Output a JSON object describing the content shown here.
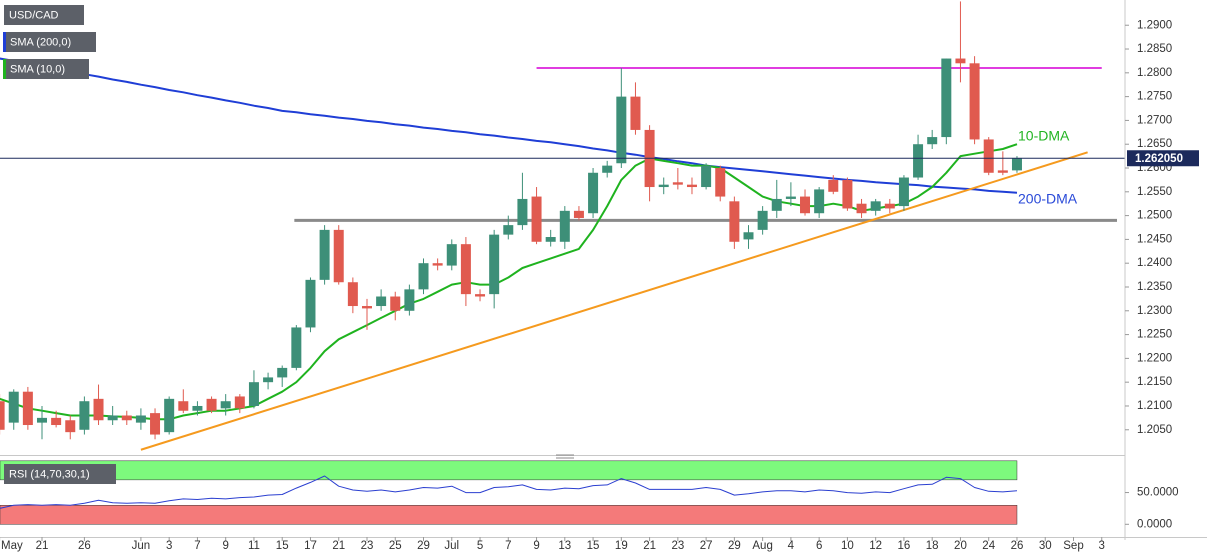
{
  "chart_data": {
    "type": "candlestick",
    "title": "USD/CAD",
    "up_color": "#3d8f78",
    "down_color": "#e05a4f",
    "categories": [
      "May",
      null,
      null,
      "21",
      null,
      null,
      "26",
      null,
      null,
      null,
      "Jun",
      null,
      "3",
      null,
      "7",
      null,
      "9",
      null,
      "11",
      null,
      "15",
      null,
      "17",
      null,
      "21",
      null,
      "23",
      null,
      "25",
      null,
      "29",
      null,
      "Jul",
      null,
      "5",
      null,
      "7",
      null,
      "9",
      null,
      "13",
      null,
      "15",
      null,
      "19",
      null,
      "21",
      null,
      "23",
      null,
      "27",
      null,
      "29",
      null,
      "Aug",
      null,
      "4",
      null,
      "6",
      null,
      "10",
      null,
      "12",
      null,
      "16",
      null,
      "18",
      null,
      "20",
      null,
      "24",
      null,
      "26",
      null,
      "30",
      null,
      "Sep",
      null,
      "3"
    ],
    "open": [
      1.211,
      1.2065,
      1.213,
      1.2065,
      1.2075,
      1.207,
      1.205,
      1.2115,
      1.207,
      1.208,
      1.2065,
      1.2085,
      1.2045,
      1.211,
      1.209,
      1.2115,
      1.2095,
      1.212,
      1.21,
      1.215,
      1.216,
      1.218,
      1.2265,
      1.2365,
      1.247,
      1.236,
      1.231,
      1.231,
      1.233,
      1.23,
      1.2345,
      1.24,
      1.2395,
      1.244,
      1.2335,
      1.2335,
      1.246,
      1.248,
      1.254,
      1.2445,
      1.2445,
      1.251,
      1.2505,
      1.259,
      1.261,
      1.275,
      1.268,
      1.256,
      1.257,
      1.2565,
      1.256,
      1.26,
      1.253,
      1.245,
      1.247,
      1.251,
      1.2535,
      1.254,
      1.2505,
      1.2575,
      1.2575,
      1.2525,
      1.251,
      1.2525,
      1.252,
      1.258,
      1.265,
      1.2665,
      1.283,
      1.282,
      1.266,
      1.2595,
      1.2595,
      null,
      null,
      null,
      null,
      null,
      null
    ],
    "high": [
      1.2125,
      1.2135,
      1.214,
      1.21,
      1.209,
      1.208,
      1.212,
      1.2145,
      1.21,
      1.209,
      1.2095,
      1.2095,
      1.212,
      1.2135,
      1.211,
      1.212,
      1.2125,
      1.2125,
      1.2175,
      1.217,
      1.2185,
      1.227,
      1.237,
      1.248,
      1.248,
      1.237,
      1.2325,
      1.2345,
      1.234,
      1.2355,
      1.241,
      1.241,
      1.245,
      1.2455,
      1.2345,
      1.247,
      1.25,
      1.259,
      1.256,
      1.247,
      1.252,
      1.252,
      1.26,
      1.2615,
      1.281,
      1.278,
      1.269,
      1.258,
      1.26,
      1.258,
      1.261,
      1.2605,
      1.254,
      1.248,
      1.252,
      1.2575,
      1.257,
      1.2555,
      1.256,
      1.2585,
      1.258,
      1.2535,
      1.2535,
      1.2535,
      1.2585,
      1.267,
      1.268,
      1.283,
      1.295,
      1.2835,
      1.2665,
      1.2635,
      1.2625,
      null,
      null,
      null,
      null,
      null,
      null
    ],
    "low": [
      1.204,
      1.205,
      1.205,
      1.203,
      1.2055,
      1.203,
      1.204,
      1.206,
      1.206,
      1.206,
      1.205,
      1.203,
      1.204,
      1.2085,
      1.208,
      1.2085,
      1.208,
      1.2085,
      1.2095,
      1.2135,
      1.214,
      1.2175,
      1.2255,
      1.2355,
      1.2355,
      1.2295,
      1.226,
      1.23,
      1.228,
      1.229,
      1.2335,
      1.2385,
      1.2385,
      1.231,
      1.232,
      1.2305,
      1.245,
      1.247,
      1.244,
      1.2435,
      1.243,
      1.249,
      1.2495,
      1.258,
      1.26,
      1.267,
      1.253,
      1.2545,
      1.2555,
      1.2545,
      1.2555,
      1.253,
      1.243,
      1.243,
      1.246,
      1.2495,
      1.252,
      1.25,
      1.2495,
      1.2545,
      1.251,
      1.2495,
      1.25,
      1.2505,
      1.251,
      1.2575,
      1.264,
      1.265,
      1.278,
      1.265,
      1.2585,
      1.2585,
      1.259,
      null,
      null,
      null,
      null,
      null,
      null
    ],
    "close": [
      1.205,
      1.213,
      1.206,
      1.2075,
      1.206,
      1.2045,
      1.211,
      1.207,
      1.208,
      1.207,
      1.208,
      1.204,
      1.2115,
      1.209,
      1.21,
      1.209,
      1.211,
      1.2095,
      1.215,
      1.216,
      1.218,
      1.2265,
      1.2365,
      1.247,
      1.236,
      1.231,
      1.2305,
      1.233,
      1.23,
      1.2345,
      1.24,
      1.2395,
      1.244,
      1.2335,
      1.233,
      1.246,
      1.248,
      1.2535,
      1.2445,
      1.2455,
      1.251,
      1.2495,
      1.259,
      1.2605,
      1.275,
      1.268,
      1.256,
      1.2565,
      1.2565,
      1.256,
      1.2605,
      1.254,
      1.2445,
      1.2465,
      1.251,
      1.2535,
      1.254,
      1.2505,
      1.2555,
      1.255,
      1.2515,
      1.2505,
      1.253,
      1.2515,
      1.258,
      1.265,
      1.2665,
      1.283,
      1.282,
      1.266,
      1.259,
      1.259,
      1.262,
      null,
      null,
      null,
      null,
      null,
      null
    ],
    "lines": [
      {
        "name": "SMA (200,0)",
        "color": "#1f3ed6",
        "values": [
          1.283,
          1.2825,
          1.2819,
          1.2814,
          1.2808,
          1.2803,
          1.2797,
          1.2792,
          1.2786,
          1.2781,
          1.2775,
          1.277,
          1.2764,
          1.2759,
          1.2753,
          1.2748,
          1.2742,
          1.2737,
          1.2731,
          1.2726,
          1.272,
          1.2717,
          1.2713,
          1.271,
          1.2706,
          1.2703,
          1.2699,
          1.2696,
          1.2692,
          1.2689,
          1.2685,
          1.2682,
          1.2678,
          1.2675,
          1.2671,
          1.2668,
          1.2664,
          1.2661,
          1.2657,
          1.2654,
          1.265,
          1.2646,
          1.2641,
          1.2637,
          1.2632,
          1.2628,
          1.2623,
          1.2619,
          1.2614,
          1.261,
          1.2605,
          1.2602,
          1.2599,
          1.2596,
          1.2593,
          1.259,
          1.2587,
          1.2584,
          1.2581,
          1.2578,
          1.2575,
          1.2573,
          1.257,
          1.2568,
          1.2566,
          1.2564,
          1.2561,
          1.2559,
          1.2557,
          1.2555,
          1.2552,
          1.255,
          1.2548,
          null,
          null,
          null,
          null,
          null,
          null
        ]
      },
      {
        "name": "SMA (10,0)",
        "color": "#1fb31f",
        "values": [
          1.2115,
          1.2105,
          1.2095,
          1.209,
          1.2085,
          1.208,
          1.208,
          1.208,
          1.2078,
          1.2077,
          1.2075,
          1.2072,
          1.2072,
          1.208,
          1.2085,
          1.209,
          1.209,
          1.2095,
          1.21,
          1.2115,
          1.213,
          1.215,
          1.218,
          1.2215,
          1.224,
          1.2255,
          1.227,
          1.2285,
          1.23,
          1.2315,
          1.2325,
          1.234,
          1.2355,
          1.236,
          1.2355,
          1.2355,
          1.237,
          1.239,
          1.24,
          1.241,
          1.242,
          1.243,
          1.247,
          1.252,
          1.2575,
          1.2605,
          1.262,
          1.2615,
          1.261,
          1.2605,
          1.2605,
          1.26,
          1.258,
          1.256,
          1.254,
          1.253,
          1.2525,
          1.252,
          1.252,
          1.2525,
          1.252,
          1.251,
          1.2515,
          1.252,
          1.2525,
          1.254,
          1.256,
          1.259,
          1.2625,
          1.263,
          1.2635,
          1.264,
          1.265,
          null,
          null,
          null,
          null,
          null,
          null
        ]
      }
    ],
    "resistance": {
      "value": 1.281,
      "color": "#e03ce0"
    },
    "support": {
      "value": 1.249,
      "color": "#8a8a8a"
    },
    "trendline": {
      "values": [
        1.2008,
        1.2633
      ],
      "color": "#f59a1e"
    },
    "annotations": [
      {
        "text": "10-DMA",
        "color": "#22b422"
      },
      {
        "text": "200-DMA",
        "color": "#2a4ad8"
      }
    ],
    "last_price": {
      "value": 1.26205,
      "label": "1.262050",
      "color": "#1c2a5c"
    },
    "ylim": [
      1.1997,
      1.2953
    ],
    "yticks": [
      {
        "value": 1.205,
        "label": "1.2050"
      },
      {
        "value": 1.21,
        "label": "1.2100"
      },
      {
        "value": 1.215,
        "label": "1.2150"
      },
      {
        "value": 1.22,
        "label": "1.2200"
      },
      {
        "value": 1.225,
        "label": "1.2250"
      },
      {
        "value": 1.23,
        "label": "1.2300"
      },
      {
        "value": 1.235,
        "label": "1.2350"
      },
      {
        "value": 1.24,
        "label": "1.2400"
      },
      {
        "value": 1.245,
        "label": "1.2450"
      },
      {
        "value": 1.25,
        "label": "1.2500"
      },
      {
        "value": 1.255,
        "label": "1.2550"
      },
      {
        "value": 1.26,
        "label": "1.2600"
      },
      {
        "value": 1.265,
        "label": "1.2650"
      },
      {
        "value": 1.27,
        "label": "1.2700"
      },
      {
        "value": 1.275,
        "label": "1.2750"
      },
      {
        "value": 1.28,
        "label": "1.2800"
      },
      {
        "value": 1.285,
        "label": "1.2850"
      },
      {
        "value": 1.29,
        "label": "1.2900"
      }
    ],
    "rsi": {
      "name": "RSI (14,70,30,1)",
      "color": "#2b3fd0",
      "upper": 70,
      "lower": 30,
      "max": 100,
      "min": 0,
      "upper_color": "#7dfa7d",
      "lower_color": "#f47a7a",
      "ylim": [
        -20,
        106
      ],
      "yticks": [
        {
          "value": 50,
          "label": "50.0000"
        },
        {
          "value": 0,
          "label": "0.0000"
        }
      ],
      "values": [
        25,
        30,
        31,
        30,
        31,
        30,
        33,
        38,
        34,
        33,
        34,
        33,
        37,
        40,
        39,
        41,
        40,
        42,
        43,
        46,
        47,
        57,
        66,
        76,
        60,
        54,
        52,
        54,
        51,
        54,
        58,
        57,
        60,
        50,
        50,
        58,
        59,
        62,
        55,
        54,
        57,
        56,
        61,
        62,
        72,
        65,
        55,
        55,
        55,
        55,
        58,
        55,
        46,
        48,
        51,
        53,
        53,
        51,
        54,
        53,
        50,
        49,
        51,
        50,
        56,
        62,
        63,
        74,
        72,
        58,
        52,
        51,
        53,
        null,
        null,
        null,
        null,
        null,
        null
      ]
    }
  }
}
